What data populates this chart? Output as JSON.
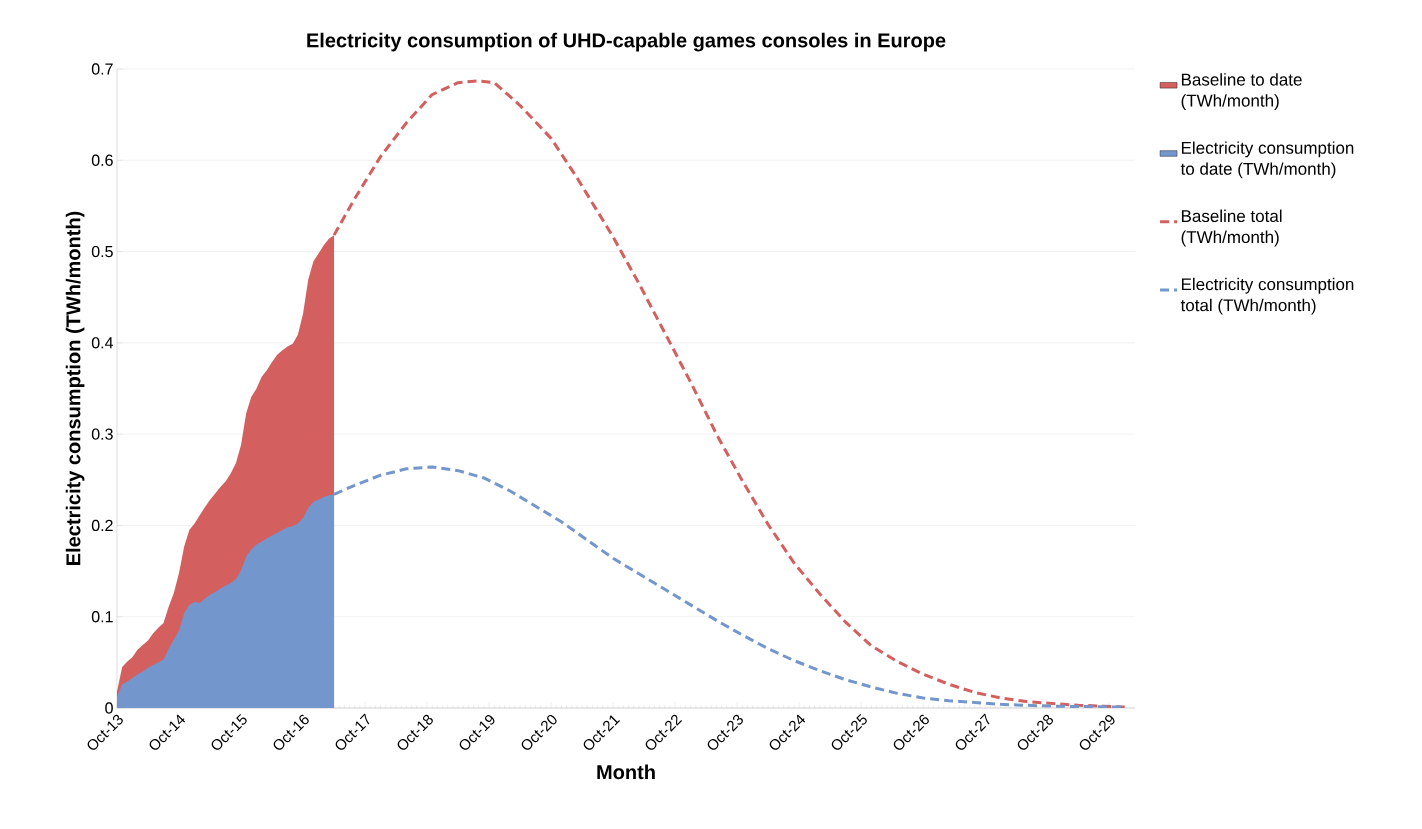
{
  "chart_data": {
    "type": "line",
    "title": "Electricity consumption of UHD-capable games consoles in Europe",
    "xlabel": "Month",
    "ylabel": "Electricity consumption (TWh/month)",
    "xlim": [
      "2013-10",
      "2030-03"
    ],
    "xticks": [
      {
        "value": "2013-10",
        "label": "Oct-13"
      },
      {
        "value": "2014-10",
        "label": "Oct-14"
      },
      {
        "value": "2015-10",
        "label": "Oct-15"
      },
      {
        "value": "2016-10",
        "label": "Oct-16"
      },
      {
        "value": "2017-10",
        "label": "Oct-17"
      },
      {
        "value": "2018-10",
        "label": "Oct-18"
      },
      {
        "value": "2019-10",
        "label": "Oct-19"
      },
      {
        "value": "2020-10",
        "label": "Oct-20"
      },
      {
        "value": "2021-10",
        "label": "Oct-21"
      },
      {
        "value": "2022-10",
        "label": "Oct-22"
      },
      {
        "value": "2023-10",
        "label": "Oct-23"
      },
      {
        "value": "2024-10",
        "label": "Oct-24"
      },
      {
        "value": "2025-10",
        "label": "Oct-25"
      },
      {
        "value": "2026-10",
        "label": "Oct-26"
      },
      {
        "value": "2027-10",
        "label": "Oct-27"
      },
      {
        "value": "2028-10",
        "label": "Oct-28"
      },
      {
        "value": "2029-10",
        "label": "Oct-29"
      }
    ],
    "ylim": [
      0,
      0.7
    ],
    "yticks": [
      0,
      0.1,
      0.2,
      0.3,
      0.4,
      0.5,
      0.6,
      0.7
    ],
    "grid": "y",
    "legend": "right",
    "marker": "none",
    "series": [
      {
        "name": "Baseline to date (TWh/month)",
        "type": "area",
        "color": "#d35f5f",
        "x": [
          "2013-10",
          "2013-11",
          "2013-12",
          "2014-01",
          "2014-02",
          "2014-03",
          "2014-04",
          "2014-05",
          "2014-06",
          "2014-07",
          "2014-08",
          "2014-09",
          "2014-10",
          "2014-11",
          "2014-12",
          "2015-01",
          "2015-02",
          "2015-03",
          "2015-04",
          "2015-05",
          "2015-06",
          "2015-07",
          "2015-08",
          "2015-09",
          "2015-10",
          "2015-11",
          "2015-12",
          "2016-01",
          "2016-02",
          "2016-03",
          "2016-04",
          "2016-05",
          "2016-06",
          "2016-07",
          "2016-08",
          "2016-09",
          "2016-10",
          "2016-11",
          "2016-12",
          "2017-01",
          "2017-02",
          "2017-03",
          "2017-04"
        ],
        "values": [
          0.018,
          0.045,
          0.051,
          0.056,
          0.064,
          0.069,
          0.074,
          0.082,
          0.088,
          0.093,
          0.111,
          0.126,
          0.148,
          0.177,
          0.195,
          0.202,
          0.211,
          0.22,
          0.228,
          0.235,
          0.242,
          0.248,
          0.257,
          0.268,
          0.288,
          0.323,
          0.341,
          0.35,
          0.363,
          0.37,
          0.379,
          0.387,
          0.392,
          0.396,
          0.399,
          0.409,
          0.432,
          0.469,
          0.489,
          0.498,
          0.507,
          0.514,
          0.518
        ]
      },
      {
        "name": "Electricity consumption to date (TWh/month)",
        "type": "area",
        "color": "#7396cc",
        "x": [
          "2013-10",
          "2013-11",
          "2013-12",
          "2014-01",
          "2014-02",
          "2014-03",
          "2014-04",
          "2014-05",
          "2014-06",
          "2014-07",
          "2014-08",
          "2014-09",
          "2014-10",
          "2014-11",
          "2014-12",
          "2015-01",
          "2015-02",
          "2015-03",
          "2015-04",
          "2015-05",
          "2015-06",
          "2015-07",
          "2015-08",
          "2015-09",
          "2015-10",
          "2015-11",
          "2015-12",
          "2016-01",
          "2016-02",
          "2016-03",
          "2016-04",
          "2016-05",
          "2016-06",
          "2016-07",
          "2016-08",
          "2016-09",
          "2016-10",
          "2016-11",
          "2016-12",
          "2017-01",
          "2017-02",
          "2017-03",
          "2017-04"
        ],
        "values": [
          0.012,
          0.026,
          0.029,
          0.033,
          0.037,
          0.04,
          0.044,
          0.047,
          0.05,
          0.053,
          0.065,
          0.075,
          0.085,
          0.104,
          0.113,
          0.116,
          0.115,
          0.12,
          0.124,
          0.127,
          0.131,
          0.134,
          0.137,
          0.141,
          0.151,
          0.166,
          0.174,
          0.179,
          0.182,
          0.186,
          0.189,
          0.192,
          0.195,
          0.198,
          0.199,
          0.202,
          0.208,
          0.219,
          0.226,
          0.228,
          0.231,
          0.233,
          0.234
        ]
      },
      {
        "name": "Baseline total (TWh/month)",
        "line_style": "dashed",
        "color": "#d35f5f",
        "x": [
          "2017-04",
          "2017-08",
          "2018-01",
          "2018-06",
          "2018-11",
          "2019-04",
          "2019-08",
          "2019-11",
          "2020-04",
          "2020-10",
          "2021-03",
          "2021-10",
          "2022-03",
          "2022-08",
          "2023-01",
          "2023-06",
          "2023-11",
          "2024-04",
          "2024-09",
          "2025-02",
          "2025-07",
          "2025-12",
          "2026-05",
          "2026-10",
          "2027-03",
          "2027-08",
          "2028-01",
          "2028-06",
          "2028-11",
          "2029-04",
          "2029-09",
          "2030-01"
        ],
        "values": [
          0.518,
          0.558,
          0.604,
          0.641,
          0.672,
          0.685,
          0.687,
          0.685,
          0.66,
          0.624,
          0.581,
          0.516,
          0.465,
          0.411,
          0.357,
          0.3,
          0.249,
          0.201,
          0.159,
          0.125,
          0.094,
          0.068,
          0.051,
          0.037,
          0.026,
          0.017,
          0.011,
          0.007,
          0.005,
          0.003,
          0.002,
          0.001
        ]
      },
      {
        "name": "Electricity consumption total (TWh/month)",
        "line_style": "dashed",
        "color": "#7396cc",
        "x": [
          "2017-04",
          "2017-08",
          "2018-01",
          "2018-06",
          "2018-11",
          "2019-04",
          "2019-09",
          "2020-02",
          "2020-07",
          "2020-12",
          "2021-05",
          "2021-10",
          "2022-03",
          "2022-08",
          "2023-01",
          "2023-06",
          "2023-11",
          "2024-04",
          "2024-09",
          "2025-02",
          "2025-07",
          "2025-12",
          "2026-05",
          "2026-10",
          "2027-03",
          "2027-08",
          "2028-01",
          "2028-11",
          "2030-01"
        ],
        "values": [
          0.234,
          0.244,
          0.255,
          0.262,
          0.264,
          0.26,
          0.252,
          0.238,
          0.221,
          0.204,
          0.184,
          0.164,
          0.147,
          0.13,
          0.113,
          0.096,
          0.08,
          0.065,
          0.052,
          0.041,
          0.031,
          0.023,
          0.016,
          0.011,
          0.008,
          0.006,
          0.004,
          0.002,
          0.001
        ]
      }
    ]
  }
}
